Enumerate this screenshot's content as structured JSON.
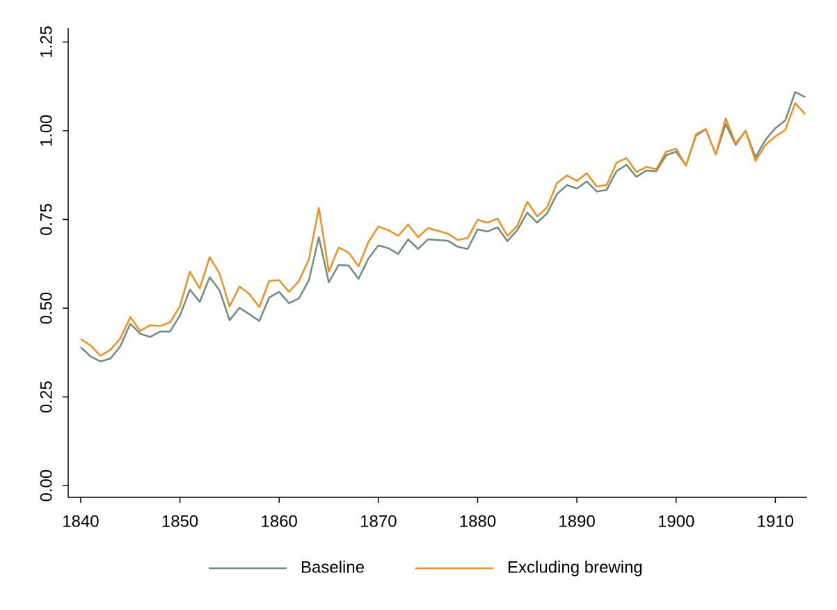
{
  "chart_data": {
    "type": "line",
    "x": [
      1840,
      1841,
      1842,
      1843,
      1844,
      1845,
      1846,
      1847,
      1848,
      1849,
      1850,
      1851,
      1852,
      1853,
      1854,
      1855,
      1856,
      1857,
      1858,
      1859,
      1860,
      1861,
      1862,
      1863,
      1864,
      1865,
      1866,
      1867,
      1868,
      1869,
      1870,
      1871,
      1872,
      1873,
      1874,
      1875,
      1876,
      1877,
      1878,
      1879,
      1880,
      1881,
      1882,
      1883,
      1884,
      1885,
      1886,
      1887,
      1888,
      1889,
      1890,
      1891,
      1892,
      1893,
      1894,
      1895,
      1896,
      1897,
      1898,
      1899,
      1900,
      1901,
      1902,
      1903,
      1904,
      1905,
      1906,
      1907,
      1908,
      1909,
      1910,
      1911,
      1912,
      1913
    ],
    "series": [
      {
        "name": "Baseline",
        "color": "#6e8b80",
        "values": [
          0.39,
          0.364,
          0.35,
          0.358,
          0.393,
          0.456,
          0.428,
          0.419,
          0.434,
          0.434,
          0.479,
          0.552,
          0.518,
          0.587,
          0.55,
          0.466,
          0.501,
          0.483,
          0.464,
          0.53,
          0.546,
          0.514,
          0.528,
          0.579,
          0.7,
          0.573,
          0.622,
          0.62,
          0.583,
          0.64,
          0.677,
          0.669,
          0.653,
          0.694,
          0.667,
          0.694,
          0.692,
          0.69,
          0.673,
          0.667,
          0.722,
          0.716,
          0.728,
          0.689,
          0.72,
          0.769,
          0.741,
          0.767,
          0.822,
          0.847,
          0.837,
          0.857,
          0.829,
          0.833,
          0.886,
          0.904,
          0.87,
          0.888,
          0.886,
          0.931,
          0.941,
          0.902,
          0.986,
          1.004,
          0.933,
          1.019,
          0.96,
          1.0,
          0.925,
          0.974,
          1.007,
          1.029,
          1.109,
          1.095
        ]
      },
      {
        "name": "Excluding brewing",
        "color": "#f28e1c",
        "values": [
          0.413,
          0.395,
          0.366,
          0.383,
          0.415,
          0.475,
          0.436,
          0.452,
          0.45,
          0.46,
          0.505,
          0.603,
          0.556,
          0.644,
          0.597,
          0.505,
          0.561,
          0.54,
          0.503,
          0.577,
          0.579,
          0.546,
          0.577,
          0.638,
          0.783,
          0.603,
          0.671,
          0.657,
          0.618,
          0.687,
          0.73,
          0.72,
          0.704,
          0.736,
          0.7,
          0.726,
          0.718,
          0.71,
          0.692,
          0.698,
          0.749,
          0.741,
          0.753,
          0.704,
          0.732,
          0.8,
          0.759,
          0.784,
          0.853,
          0.874,
          0.859,
          0.88,
          0.843,
          0.847,
          0.91,
          0.923,
          0.884,
          0.898,
          0.892,
          0.941,
          0.949,
          0.902,
          0.99,
          1.005,
          0.933,
          1.035,
          0.964,
          1.0,
          0.915,
          0.96,
          0.984,
          1.002,
          1.078,
          1.047
        ]
      }
    ],
    "xlim": [
      1838.74,
      1913.2
    ],
    "xticks": [
      1840,
      1850,
      1860,
      1870,
      1880,
      1890,
      1900,
      1910
    ],
    "ylim": [
      -0.033,
      1.29
    ],
    "yticks": [
      {
        "value": 0,
        "label": "0.00"
      },
      {
        "value": 0.25,
        "label": "0.25"
      },
      {
        "value": 0.5,
        "label": "0.50"
      },
      {
        "value": 0.75,
        "label": "0.75"
      },
      {
        "value": 1,
        "label": "1.00"
      },
      {
        "value": 1.25,
        "label": "1.25"
      }
    ],
    "legend": "bottom"
  }
}
